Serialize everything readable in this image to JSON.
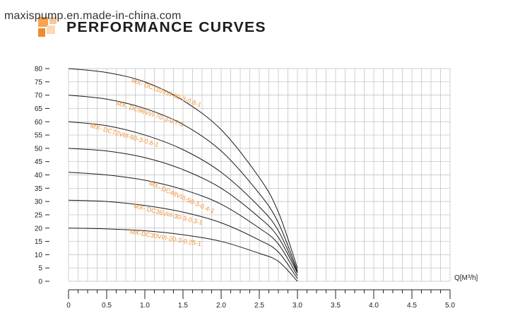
{
  "header": {
    "watermark": "maxispump.en.made-in-china.com",
    "title": "PERFORMANCE CURVES",
    "logo_colors": [
      "#f5a552",
      "#f7c89a",
      "#f08a2c",
      "#fbd9b6"
    ]
  },
  "chart_data": {
    "type": "line",
    "title": "PERFORMANCE CURVES",
    "xlabel": "Q[M³/h]",
    "ylabel": "",
    "xlim": [
      0,
      5.0
    ],
    "ylim": [
      0,
      80
    ],
    "xticks": [
      "0",
      "0.5",
      "1.0",
      "1.5",
      "2.0",
      "2.5",
      "3.0",
      "3.5",
      "4.0",
      "4.5",
      "5.0"
    ],
    "yticks": [
      "0",
      "5",
      "10",
      "15",
      "20",
      "25",
      "30",
      "35",
      "40",
      "45",
      "50",
      "55",
      "60",
      "65",
      "70",
      "75",
      "80"
    ],
    "grid": true,
    "label_color": "#f29130",
    "curve_color": "#1a1a1a",
    "series": [
      {
        "name": "MX- DC110VI/I-80-3-0.8-1",
        "x": [
          0,
          0.5,
          1.0,
          1.5,
          2.0,
          2.5,
          2.75,
          3.0
        ],
        "y": [
          80,
          78.5,
          75,
          68,
          57,
          39,
          26,
          5
        ]
      },
      {
        "name": "MX- DC96VI/I-70-3-0.7-1",
        "x": [
          0,
          0.5,
          1.0,
          1.5,
          2.0,
          2.5,
          2.75,
          3.0
        ],
        "y": [
          70,
          68.5,
          65,
          59,
          49,
          33,
          22,
          4
        ]
      },
      {
        "name": "MX- DC72VI/I-60-3-0.6-1",
        "x": [
          0,
          0.5,
          1.0,
          1.5,
          2.0,
          2.5,
          2.75,
          3.0
        ],
        "y": [
          60,
          58.5,
          55,
          49.5,
          41,
          28,
          19,
          3.5
        ]
      },
      {
        "name": "",
        "x": [
          0,
          0.5,
          1.0,
          1.5,
          2.0,
          2.5,
          2.75,
          3.0
        ],
        "y": [
          50,
          49,
          46.5,
          42,
          35,
          24,
          16.5,
          3
        ]
      },
      {
        "name": "MX- DC48VI/I-50-3-0.4-1",
        "x": [
          0,
          0.5,
          1.0,
          1.5,
          2.0,
          2.5,
          2.75,
          3.0
        ],
        "y": [
          41,
          40,
          38,
          34.5,
          29,
          20,
          14,
          2
        ]
      },
      {
        "name": "MX- DC36VI/I-30-3-0.3-1",
        "x": [
          0,
          0.5,
          1.0,
          1.5,
          2.0,
          2.5,
          2.75,
          3.0
        ],
        "y": [
          30.5,
          30,
          28.5,
          26,
          22,
          15.5,
          11,
          1
        ]
      },
      {
        "name": "MX-DC30VI/I-20-3-0.25-1",
        "x": [
          0,
          0.5,
          1.0,
          1.5,
          2.0,
          2.5,
          2.75,
          3.0
        ],
        "y": [
          20,
          19.7,
          19,
          17.5,
          15,
          10.5,
          7.5,
          0
        ]
      }
    ]
  }
}
